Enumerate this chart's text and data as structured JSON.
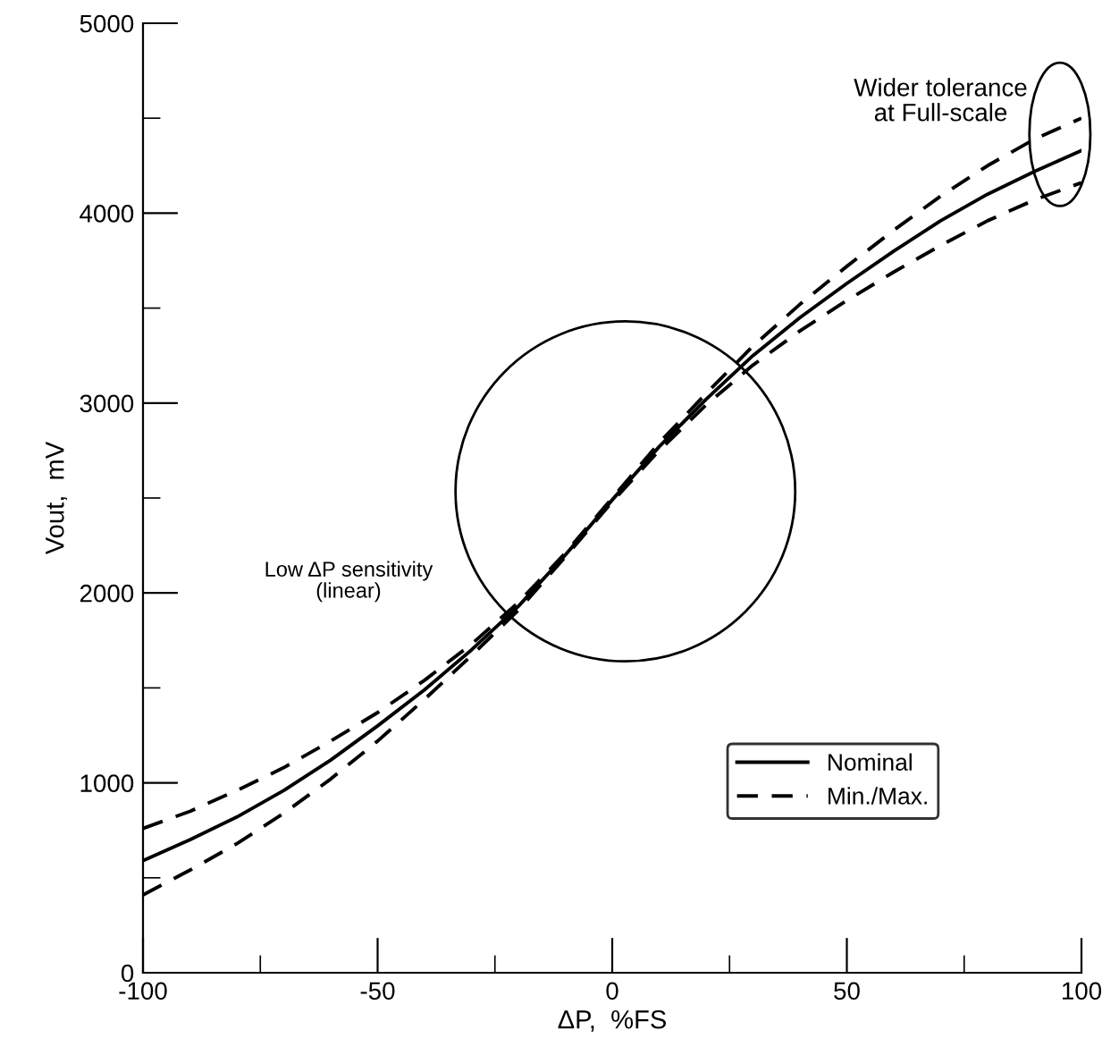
{
  "chart_data": {
    "type": "line",
    "xlabel": "ΔP,  %FS",
    "ylabel": "Vout,  mV",
    "x": [
      -100,
      -90,
      -80,
      -70,
      -60,
      -50,
      -40,
      -30,
      -20,
      -10,
      0,
      10,
      20,
      30,
      40,
      50,
      60,
      70,
      80,
      90,
      100
    ],
    "series": [
      {
        "name": "Nominal",
        "color": "#000000",
        "line_style": "solid",
        "values": [
          590,
          700,
          820,
          960,
          1120,
          1300,
          1490,
          1700,
          1930,
          2200,
          2490,
          2770,
          3020,
          3250,
          3450,
          3630,
          3800,
          3960,
          4100,
          4220,
          4330
        ]
      },
      {
        "name": "Min./Max.",
        "color": "#000000",
        "line_style": "dashed",
        "values": [
          760,
          850,
          960,
          1080,
          1220,
          1370,
          1540,
          1730,
          1950,
          2210,
          2500,
          2790,
          3050,
          3300,
          3520,
          3720,
          3910,
          4090,
          4250,
          4390,
          4500
        ]
      },
      {
        "color": "#000000",
        "line_style": "dashed",
        "values": [
          410,
          540,
          680,
          840,
          1020,
          1220,
          1440,
          1670,
          1910,
          2190,
          2480,
          2750,
          2990,
          3200,
          3380,
          3540,
          3690,
          3830,
          3960,
          4070,
          4160
        ]
      }
    ],
    "xlim": [
      -100,
      100
    ],
    "xticks": [
      -100,
      -50,
      0,
      50,
      100
    ],
    "ylim": [
      0,
      5000
    ],
    "yticks": [
      0,
      1000,
      2000,
      3000,
      4000,
      5000
    ],
    "grid": false,
    "legend": "bottom right",
    "marker": "none",
    "annotations": [
      "Low ΔP sensitivity\n(linear)",
      "Wider tolerance\nat Full-scale"
    ]
  }
}
